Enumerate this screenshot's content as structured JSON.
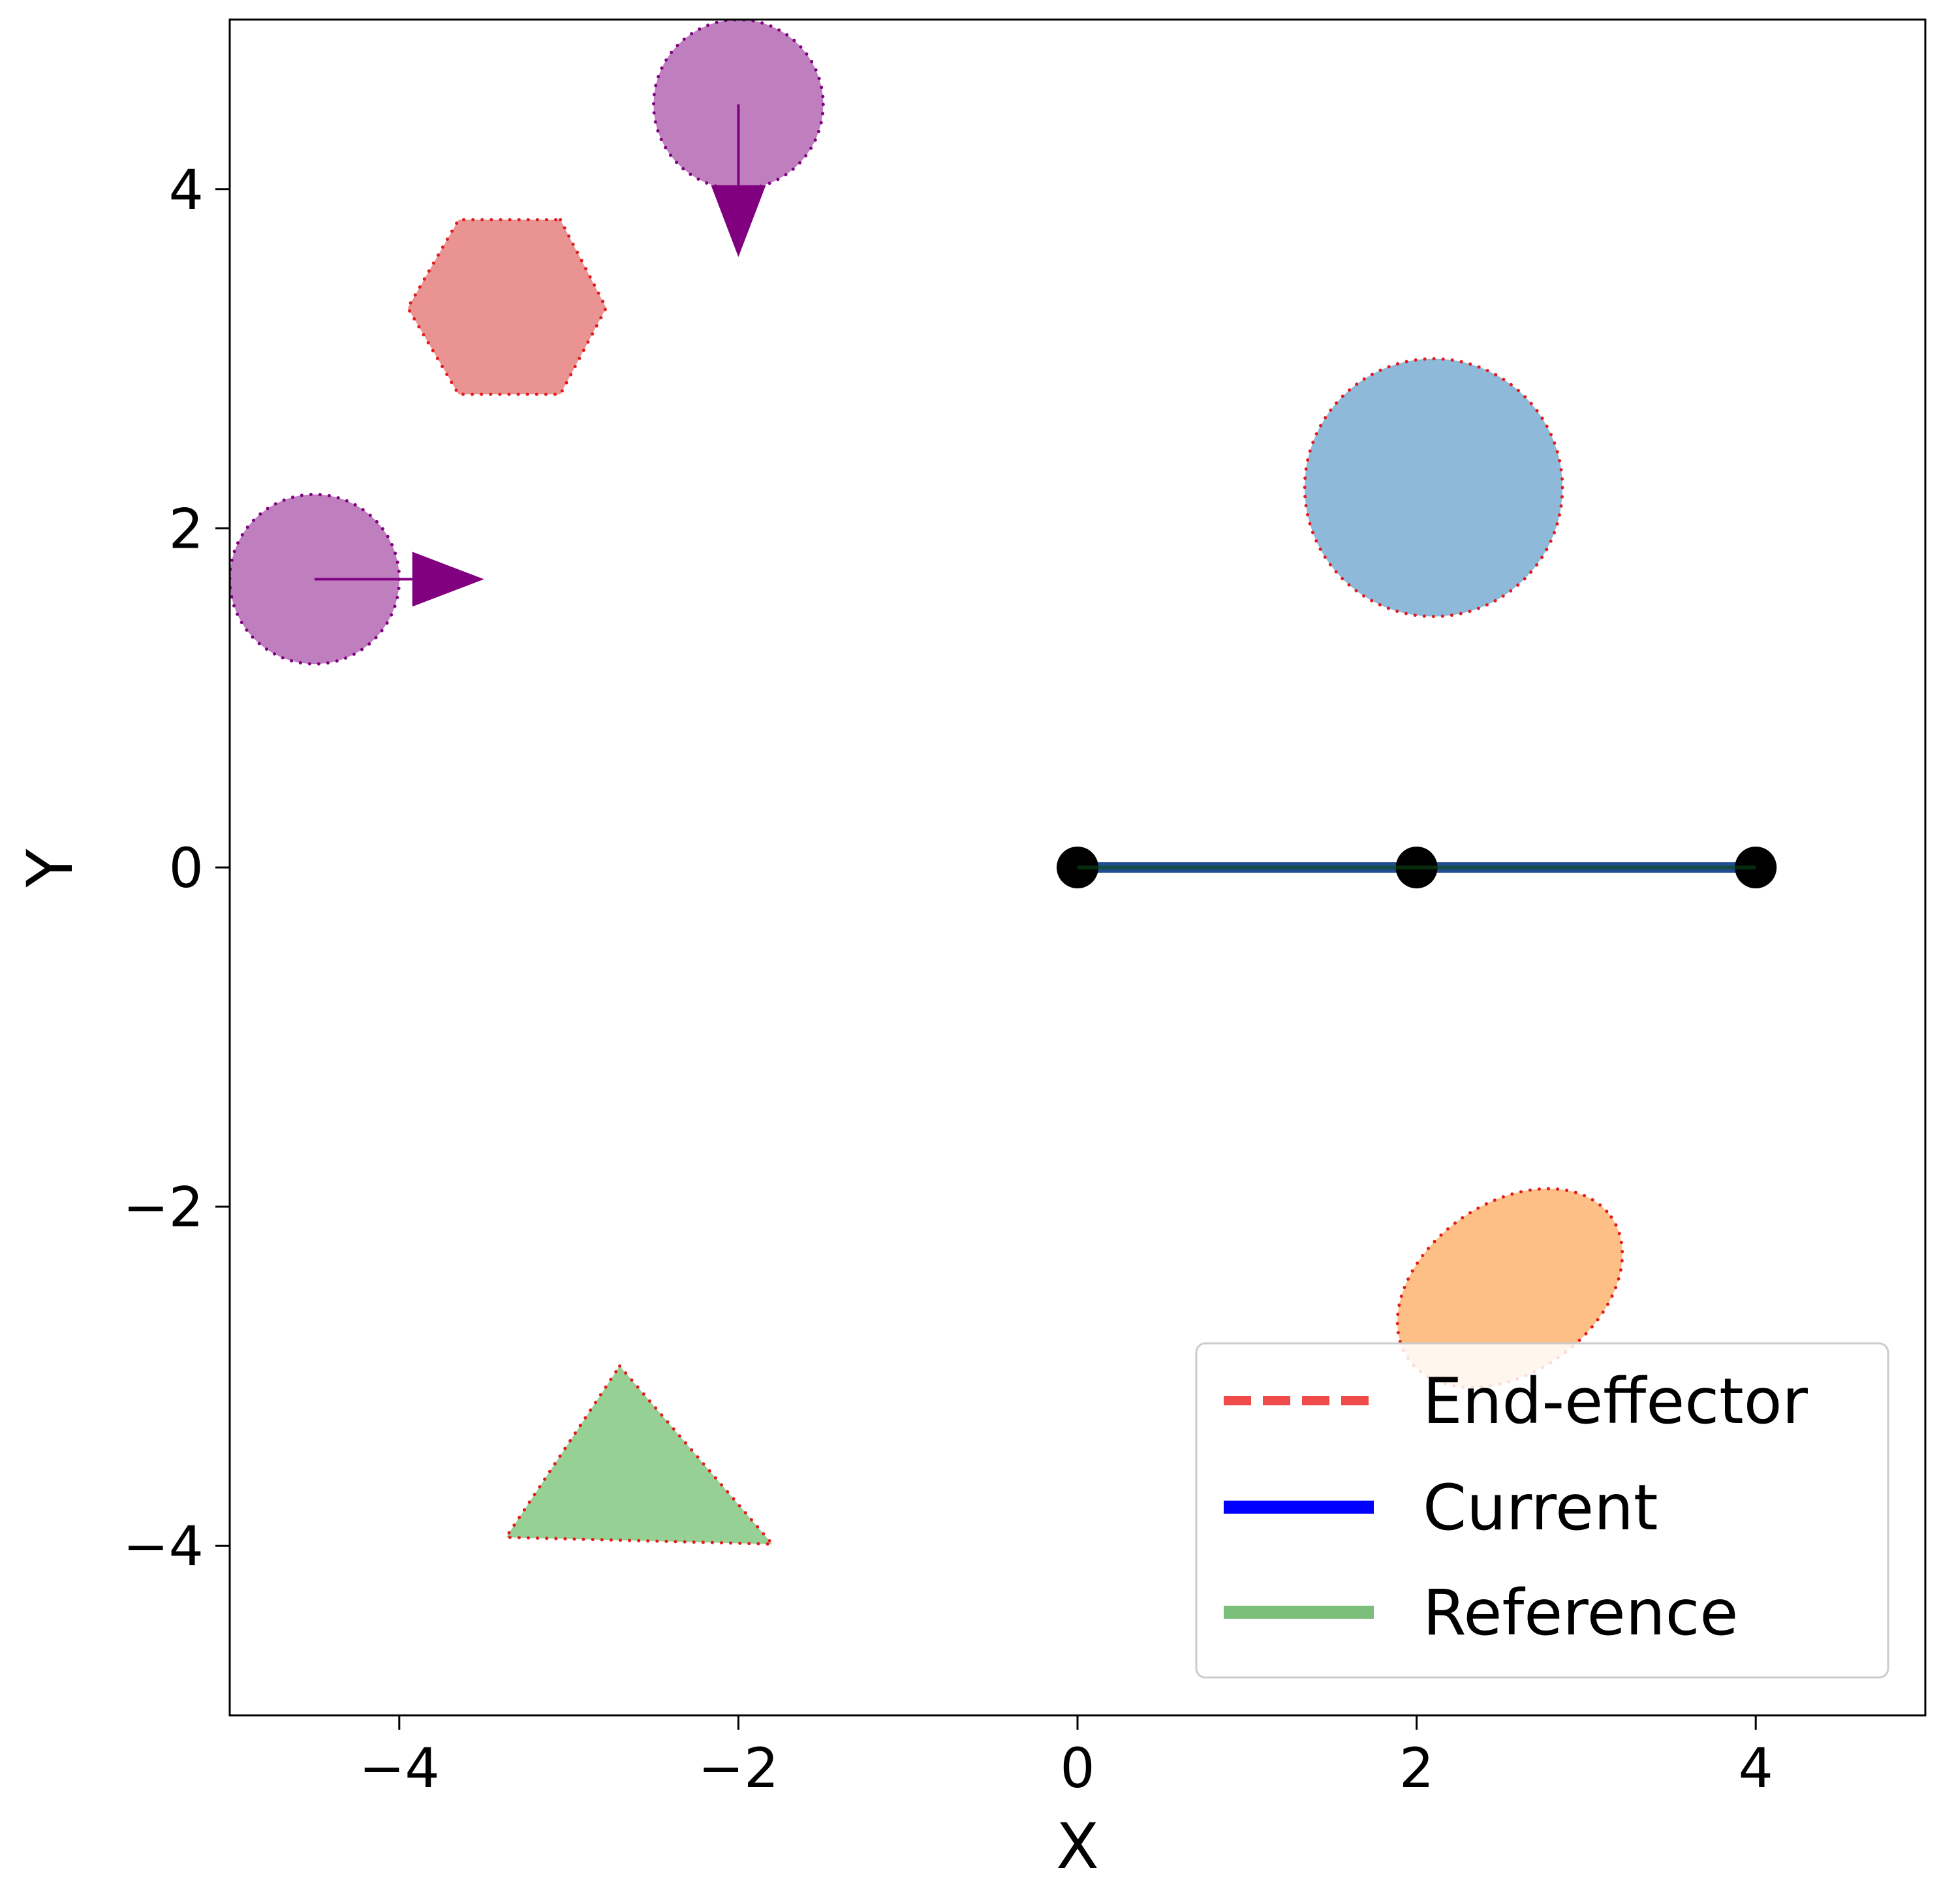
{
  "chart_data": {
    "type": "scatter",
    "xlabel": "X",
    "ylabel": "Y",
    "xlim": [
      -5,
      5
    ],
    "ylim": [
      -5,
      5
    ],
    "grid": false,
    "legend_position": "lower-right",
    "x_ticks": [
      {
        "value": -4,
        "label": "−4"
      },
      {
        "value": -2,
        "label": "−2"
      },
      {
        "value": 0,
        "label": "0"
      },
      {
        "value": 2,
        "label": "2"
      },
      {
        "value": 4,
        "label": "4"
      }
    ],
    "y_ticks": [
      {
        "value": -4,
        "label": "−4"
      },
      {
        "value": -2,
        "label": "−2"
      },
      {
        "value": 0,
        "label": "0"
      },
      {
        "value": 2,
        "label": "2"
      },
      {
        "value": 4,
        "label": "4"
      }
    ],
    "legend": [
      {
        "label": "End-effector",
        "color": "#f04a4a",
        "style": "dashed"
      },
      {
        "label": "Current",
        "color": "#0000ff",
        "style": "solid"
      },
      {
        "label": "Reference",
        "color": "#7cbf7c",
        "style": "solid"
      }
    ],
    "arm": {
      "current_color": "#0000ff",
      "reference_color": "#3d8b3d",
      "joint_color": "#000000",
      "joints": [
        {
          "x": 0,
          "y": 0
        },
        {
          "x": 2,
          "y": 0
        },
        {
          "x": 4,
          "y": 0
        }
      ]
    },
    "obstacles": [
      {
        "shape": "circle",
        "cx": -2.0,
        "cy": 4.5,
        "r": 0.5,
        "fill": "#bf7fbf",
        "edge": "#800080",
        "arrow": {
          "x0": -2.0,
          "y0": 4.5,
          "x1": -2.0,
          "y1": 3.6
        }
      },
      {
        "shape": "circle",
        "cx": -4.5,
        "cy": 1.7,
        "r": 0.5,
        "fill": "#bf7fbf",
        "edge": "#800080",
        "arrow": {
          "x0": -4.5,
          "y0": 1.7,
          "x1": -3.5,
          "y1": 1.7
        }
      },
      {
        "shape": "polygon",
        "fill": "#ea9393",
        "edge": "#e41a1c",
        "points": [
          [
            -3.05,
            3.82
          ],
          [
            -2.78,
            3.3
          ],
          [
            -3.05,
            2.79
          ],
          [
            -3.65,
            2.79
          ],
          [
            -3.95,
            3.3
          ],
          [
            -3.65,
            3.82
          ]
        ]
      },
      {
        "shape": "circle",
        "cx": 2.1,
        "cy": 2.24,
        "r": 0.76,
        "fill": "#8fb9d9",
        "edge": "#e41a1c"
      },
      {
        "shape": "ellipse",
        "cx": 2.55,
        "cy": -2.48,
        "rx": 0.73,
        "ry": 0.5,
        "angle": 35,
        "fill": "#fdbf85",
        "edge": "#e41a1c"
      },
      {
        "shape": "polygon",
        "fill": "#97d095",
        "edge": "#e41a1c",
        "points": [
          [
            -2.7,
            -2.94
          ],
          [
            -1.8,
            -3.99
          ],
          [
            -3.37,
            -3.95
          ]
        ]
      }
    ],
    "arrow_color": "#800080"
  }
}
